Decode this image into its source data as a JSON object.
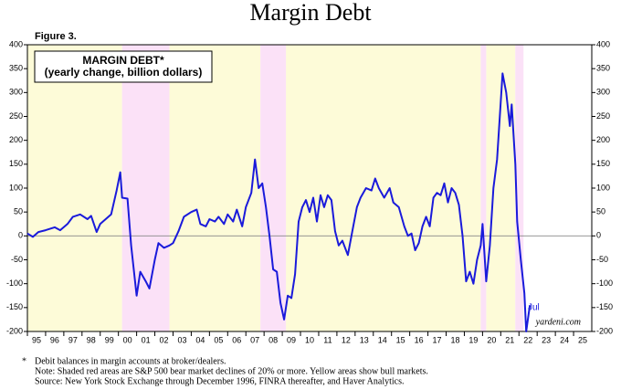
{
  "chart_data": {
    "type": "line",
    "title": "Margin Debt",
    "figure_label": "Figure 3.",
    "legend_title": "MARGIN DEBT*",
    "legend_subtitle": "(yearly change, billion dollars)",
    "annotation": "Jul",
    "source_mark": "yardeni.com",
    "footnotes": [
      "*",
      "Debit balances in margin accounts at broker/dealers.",
      "Note: Shaded red areas are S&P 500 bear market declines of 20% or more. Yellow areas show bull markets.",
      "Source: New York Stock Exchange through December 1996, FINRA thereafter, and Haver Analytics."
    ],
    "xlim": [
      1995,
      2026
    ],
    "xticks": [
      {
        "value": 1995,
        "label": "95"
      },
      {
        "value": 1996,
        "label": "96"
      },
      {
        "value": 1997,
        "label": "97"
      },
      {
        "value": 1998,
        "label": "98"
      },
      {
        "value": 1999,
        "label": "99"
      },
      {
        "value": 2000,
        "label": "00"
      },
      {
        "value": 2001,
        "label": "01"
      },
      {
        "value": 2002,
        "label": "02"
      },
      {
        "value": 2003,
        "label": "03"
      },
      {
        "value": 2004,
        "label": "04"
      },
      {
        "value": 2005,
        "label": "05"
      },
      {
        "value": 2006,
        "label": "06"
      },
      {
        "value": 2007,
        "label": "07"
      },
      {
        "value": 2008,
        "label": "08"
      },
      {
        "value": 2009,
        "label": "09"
      },
      {
        "value": 2010,
        "label": "10"
      },
      {
        "value": 2011,
        "label": "11"
      },
      {
        "value": 2012,
        "label": "12"
      },
      {
        "value": 2013,
        "label": "13"
      },
      {
        "value": 2014,
        "label": "14"
      },
      {
        "value": 2015,
        "label": "15"
      },
      {
        "value": 2016,
        "label": "16"
      },
      {
        "value": 2017,
        "label": "17"
      },
      {
        "value": 2018,
        "label": "18"
      },
      {
        "value": 2019,
        "label": "19"
      },
      {
        "value": 2020,
        "label": "20"
      },
      {
        "value": 2021,
        "label": "21"
      },
      {
        "value": 2022,
        "label": "22"
      },
      {
        "value": 2023,
        "label": "23"
      },
      {
        "value": 2024,
        "label": "24"
      },
      {
        "value": 2025,
        "label": "25"
      }
    ],
    "ylim": [
      -200,
      400
    ],
    "yticks": [
      -200,
      -150,
      -100,
      -50,
      0,
      50,
      100,
      150,
      200,
      250,
      300,
      350,
      400
    ],
    "y2lim": [
      -200,
      400
    ],
    "y2ticks": [
      -200,
      -150,
      -100,
      -50,
      0,
      50,
      100,
      150,
      200,
      250,
      300,
      350,
      400
    ],
    "bull_markets": [
      [
        1995,
        2000.2
      ],
      [
        2002.8,
        2007.8
      ],
      [
        2009.2,
        2019.9
      ],
      [
        2020.2,
        2021.8
      ]
    ],
    "bear_markets": [
      [
        2000.2,
        2002.8
      ],
      [
        2007.8,
        2009.2
      ],
      [
        2019.9,
        2020.2
      ],
      [
        2021.8,
        2022.25
      ]
    ],
    "bull_color": "#fdfbd8",
    "bear_color": "#fbe1f7",
    "series": [
      {
        "name": "MARGIN DEBT*",
        "color": "#1a1adb",
        "x": [
          1995.0,
          1995.3,
          1995.6,
          1996.0,
          1996.5,
          1996.8,
          1997.2,
          1997.5,
          1997.9,
          1998.3,
          1998.5,
          1998.8,
          1999.0,
          1999.3,
          1999.6,
          1999.9,
          2000.1,
          2000.2,
          2000.5,
          2000.7,
          2001.0,
          2001.2,
          2001.5,
          2001.7,
          2002.0,
          2002.2,
          2002.5,
          2002.8,
          2003.0,
          2003.3,
          2003.6,
          2004.0,
          2004.3,
          2004.5,
          2004.8,
          2005.0,
          2005.3,
          2005.5,
          2005.8,
          2006.0,
          2006.3,
          2006.5,
          2006.8,
          2007.0,
          2007.3,
          2007.5,
          2007.7,
          2007.9,
          2008.1,
          2008.3,
          2008.5,
          2008.7,
          2008.9,
          2009.1,
          2009.3,
          2009.5,
          2009.7,
          2009.9,
          2010.1,
          2010.3,
          2010.5,
          2010.7,
          2010.9,
          2011.1,
          2011.3,
          2011.5,
          2011.7,
          2011.9,
          2012.1,
          2012.3,
          2012.6,
          2012.9,
          2013.1,
          2013.3,
          2013.6,
          2013.9,
          2014.1,
          2014.3,
          2014.6,
          2014.9,
          2015.1,
          2015.4,
          2015.7,
          2015.9,
          2016.1,
          2016.3,
          2016.5,
          2016.7,
          2016.9,
          2017.1,
          2017.3,
          2017.5,
          2017.7,
          2017.9,
          2018.1,
          2018.3,
          2018.5,
          2018.7,
          2018.9,
          2019.1,
          2019.3,
          2019.5,
          2019.7,
          2019.9,
          2020.0,
          2020.2,
          2020.4,
          2020.6,
          2020.8,
          2021.0,
          2021.1,
          2021.3,
          2021.5,
          2021.6,
          2021.8,
          2021.9,
          2022.1,
          2022.3,
          2022.4,
          2022.6
        ],
        "values": [
          5,
          -2,
          8,
          12,
          18,
          12,
          25,
          40,
          45,
          35,
          42,
          8,
          25,
          35,
          45,
          95,
          133,
          80,
          78,
          -20,
          -125,
          -75,
          -95,
          -110,
          -50,
          -15,
          -25,
          -20,
          -15,
          10,
          40,
          50,
          55,
          25,
          20,
          35,
          30,
          40,
          25,
          45,
          30,
          55,
          20,
          60,
          90,
          160,
          100,
          110,
          60,
          0,
          -70,
          -75,
          -140,
          -175,
          -125,
          -130,
          -80,
          30,
          60,
          75,
          50,
          80,
          30,
          85,
          60,
          85,
          75,
          10,
          -20,
          -10,
          -40,
          20,
          60,
          80,
          100,
          95,
          120,
          100,
          80,
          100,
          70,
          60,
          20,
          0,
          5,
          -30,
          -15,
          20,
          40,
          20,
          80,
          90,
          85,
          110,
          70,
          100,
          90,
          65,
          0,
          -95,
          -75,
          -100,
          -50,
          -20,
          25,
          -95,
          -20,
          100,
          160,
          280,
          340,
          300,
          230,
          275,
          150,
          30,
          -50,
          -120,
          -200,
          -145
        ]
      }
    ]
  }
}
